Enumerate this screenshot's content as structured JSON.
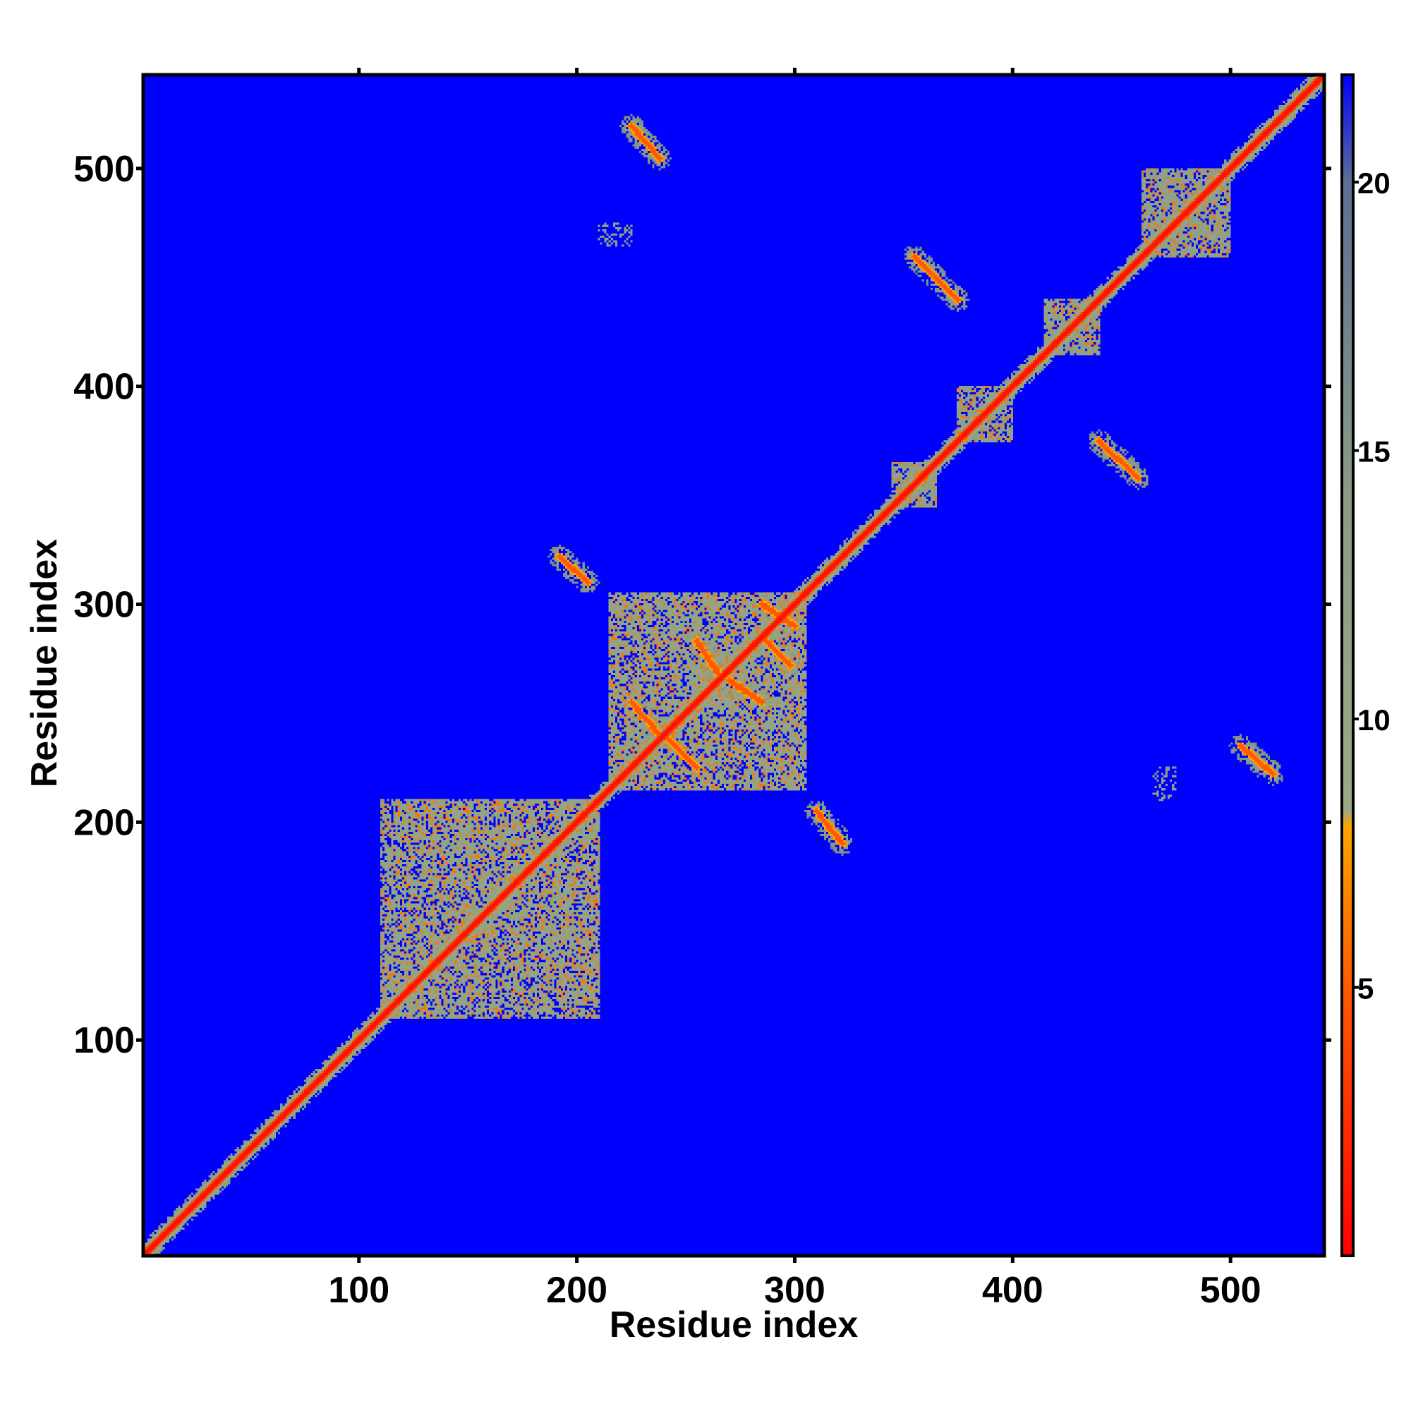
{
  "chart_data": {
    "type": "heatmap",
    "xlabel": "Residue index",
    "ylabel": "Residue index",
    "xlim": [
      1,
      543
    ],
    "ylim": [
      1,
      543
    ],
    "x_ticks": [
      100,
      200,
      300,
      400,
      500
    ],
    "y_ticks": [
      100,
      200,
      300,
      400,
      500
    ],
    "colorbar": {
      "range": [
        0,
        22
      ],
      "ticks": [
        5,
        10,
        15,
        20
      ],
      "stops": [
        {
          "value": 0,
          "color": "#ff0000"
        },
        {
          "value": 5,
          "color": "#ff5a00"
        },
        {
          "value": 8,
          "color": "#ffa500"
        },
        {
          "value": 8.3,
          "color": "#9aaa84"
        },
        {
          "value": 14,
          "color": "#8c9c84"
        },
        {
          "value": 20,
          "color": "#5c7094"
        },
        {
          "value": 22,
          "color": "#0000ff"
        }
      ]
    },
    "background_color": "#0000ff",
    "description": "Residue-residue distance map (symmetric). Low values (red) near diagonal; blocks and off-diagonal contact stripes at listed regions.",
    "diagonal_band": {
      "from": 1,
      "to": 543
    },
    "blocks": [
      {
        "x": [
          110,
          210
        ],
        "y": [
          110,
          210
        ],
        "level": 10
      },
      {
        "x": [
          215,
          305
        ],
        "y": [
          215,
          305
        ],
        "level": 10
      },
      {
        "x": [
          460,
          500
        ],
        "y": [
          460,
          500
        ],
        "level": 11
      },
      {
        "x": [
          415,
          440
        ],
        "y": [
          415,
          440
        ],
        "level": 11
      },
      {
        "x": [
          375,
          400
        ],
        "y": [
          375,
          400
        ],
        "level": 11
      },
      {
        "x": [
          345,
          365
        ],
        "y": [
          345,
          365
        ],
        "level": 11
      }
    ],
    "contacts": [
      {
        "x": [
          225,
          238
        ],
        "y": [
          520,
          505
        ]
      },
      {
        "x": [
          355,
          375
        ],
        "y": [
          460,
          440
        ]
      },
      {
        "x": [
          505,
          520
        ],
        "y": [
          235,
          222
        ]
      },
      {
        "x": [
          440,
          458
        ],
        "y": [
          375,
          358
        ]
      },
      {
        "x": [
          225,
          238
        ],
        "y": [
          255,
          240
        ]
      },
      {
        "x": [
          255,
          265
        ],
        "y": [
          283,
          268
        ]
      },
      {
        "x": [
          285,
          300
        ],
        "y": [
          300,
          290
        ]
      },
      {
        "x": [
          240,
          255
        ],
        "y": [
          240,
          225
        ]
      },
      {
        "x": [
          270,
          285
        ],
        "y": [
          265,
          255
        ]
      },
      {
        "x": [
          285,
          298
        ],
        "y": [
          285,
          272
        ]
      },
      {
        "x": [
          192,
          205
        ],
        "y": [
          322,
          310
        ]
      },
      {
        "x": [
          310,
          322
        ],
        "y": [
          205,
          190
        ]
      }
    ],
    "patches": [
      {
        "x": [
          210,
          225
        ],
        "y": [
          465,
          475
        ]
      },
      {
        "x": [
          465,
          475
        ],
        "y": [
          210,
          225
        ]
      },
      {
        "x": [
          350,
          360
        ],
        "y": [
          350,
          360
        ]
      }
    ]
  }
}
